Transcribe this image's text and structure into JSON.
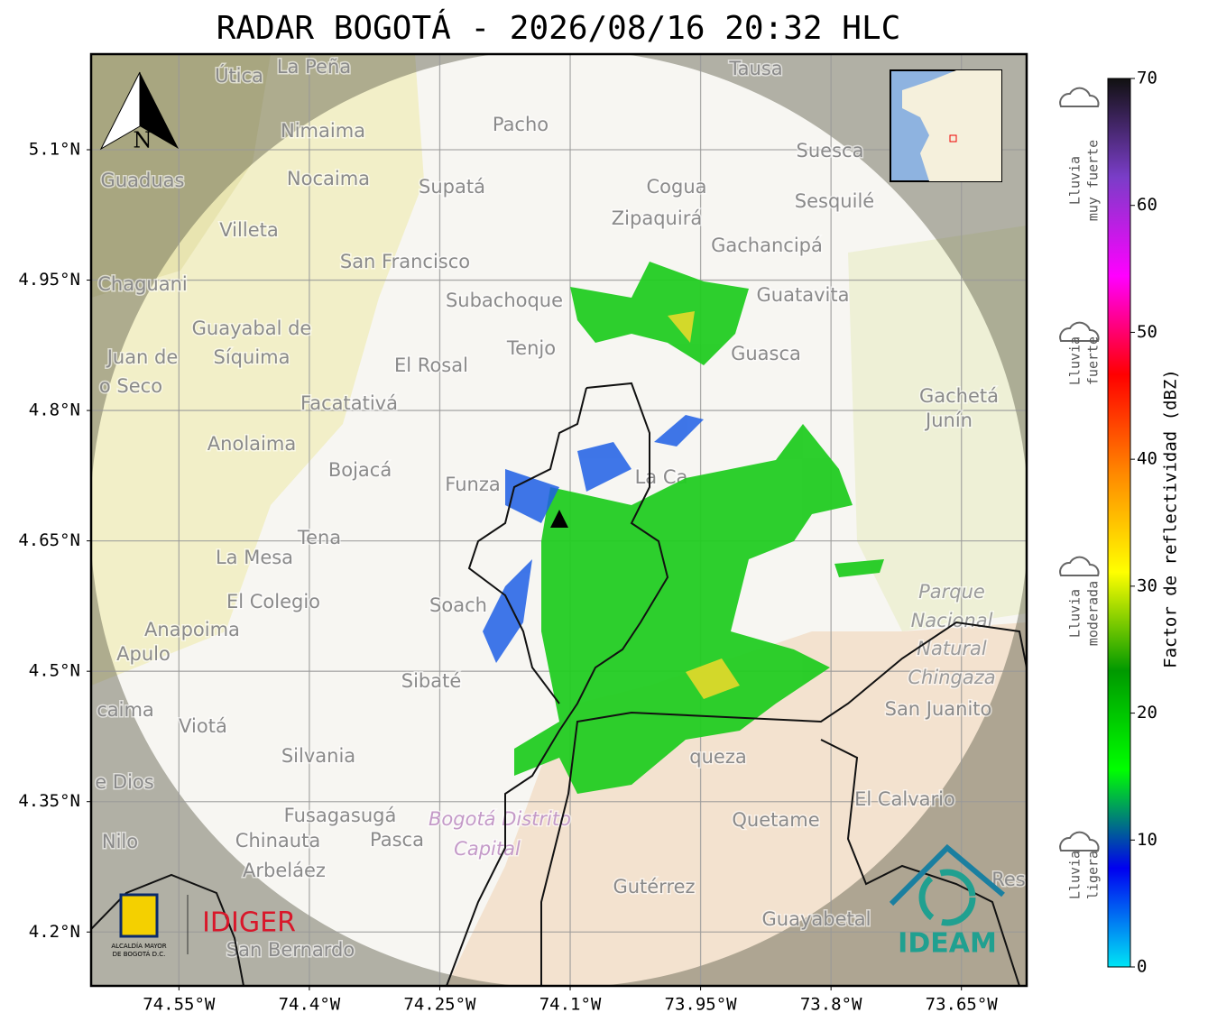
{
  "title": "RADAR BOGOTÁ - 2026/08/16 20:32 HLC",
  "map": {
    "xlim": [
      -74.651,
      -73.575
    ],
    "ylim": [
      4.138,
      5.21
    ],
    "xticks": [
      {
        "value": -74.55,
        "label": "74.55°W"
      },
      {
        "value": -74.4,
        "label": "74.4°W"
      },
      {
        "value": -74.25,
        "label": "74.25°W"
      },
      {
        "value": -74.1,
        "label": "74.1°W"
      },
      {
        "value": -73.95,
        "label": "73.95°W"
      },
      {
        "value": -73.8,
        "label": "73.8°W"
      },
      {
        "value": -73.65,
        "label": "73.65°W"
      }
    ],
    "yticks": [
      {
        "value": 5.1,
        "label": "5.1°N"
      },
      {
        "value": 4.95,
        "label": "4.95°N"
      },
      {
        "value": 4.8,
        "label": "4.8°N"
      },
      {
        "value": 4.65,
        "label": "4.65°N"
      },
      {
        "value": 4.5,
        "label": "4.5°N"
      },
      {
        "value": 4.35,
        "label": "4.35°N"
      },
      {
        "value": 4.2,
        "label": "4.2°N"
      }
    ],
    "north": "N",
    "places": [
      "La Peña",
      "Útica",
      "Tausa",
      "Pacho",
      "Nimaima",
      "Suesca",
      "Guaduas",
      "Nocaima",
      "Supatá",
      "Cogua",
      "Sesquilé",
      "Zipaquirá",
      "Villeta",
      "Gachancipá",
      "San Francisco",
      "Chaguani",
      "Guatavita",
      "Subachoque",
      "Guayabal de",
      "Síquima",
      "Tenjo",
      "Guasca",
      "Juan de",
      "El Rosal",
      "o Seco",
      "Facatativá",
      "Gachetá",
      "Junín",
      "Anolaima",
      "Bojacá",
      "Funza",
      "La Ca",
      "Tena",
      "La Mesa",
      "Parque",
      "Nacional",
      "Natural",
      "Chingaza",
      "El Colegio",
      "Soach",
      "Anapoima",
      "Apulo",
      "Sibaté",
      "San Juanito",
      "caima",
      "Viotá",
      "Silvania",
      "queza",
      "e Dios",
      "El Calvario",
      "Fusagasugá",
      "Bogotá Distrito",
      "Capital",
      "Quetame",
      "Nilo",
      "Chinauta",
      "Pasca",
      "Arbeláez",
      "Gutérrez",
      "Guayabetal",
      "San Bernardo",
      "Res"
    ],
    "logos": {
      "alcaldia": [
        "ALCALDÍA MAYOR",
        "DE BOGOTÁ D.C."
      ],
      "idiger": "IDIGER",
      "ideam": "IDEAM"
    }
  },
  "colorbar": {
    "label": "Factor de reflectividad (dBZ)",
    "clim": [
      0,
      70
    ],
    "ticks": [
      0,
      10,
      20,
      30,
      40,
      50,
      60,
      70
    ],
    "colors": [
      "#00e5f5",
      "#0000f0",
      "#00ff00",
      "#009900",
      "#ffff00",
      "#ff8800",
      "#ff0000",
      "#ff00ff",
      "#7a3dc8",
      "#111111"
    ],
    "rain": [
      [
        "Lluvia",
        "muy fuerte"
      ],
      [
        "Lluvia",
        "fuerte"
      ],
      [
        "Lluvia",
        "moderada"
      ],
      [
        "Lluvia",
        "ligera"
      ]
    ]
  }
}
